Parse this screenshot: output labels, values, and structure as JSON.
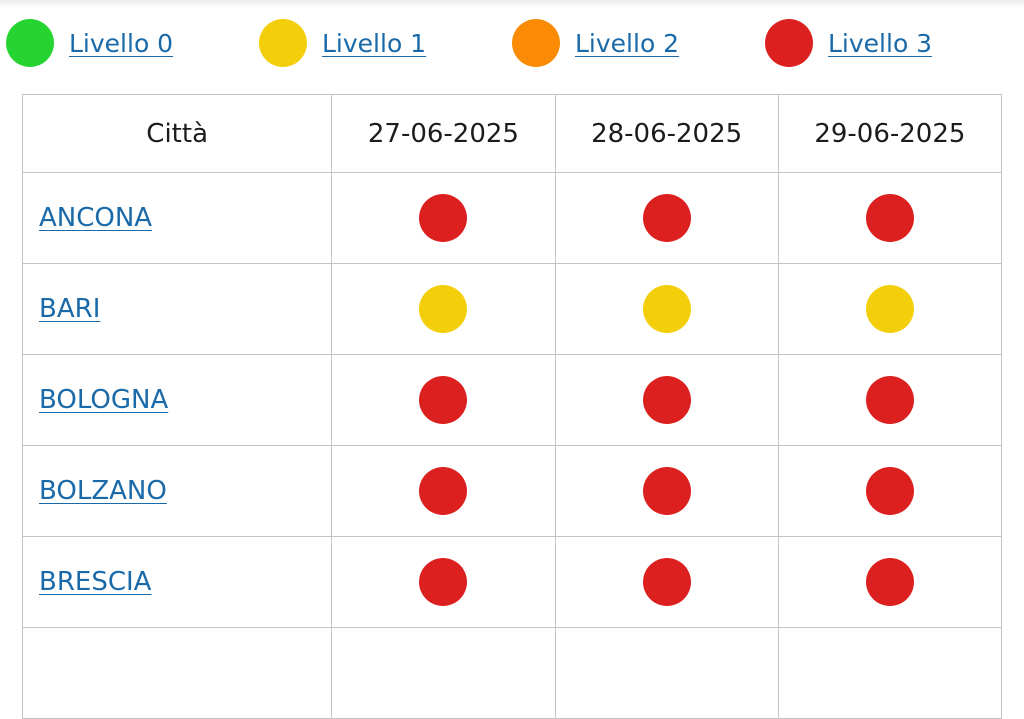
{
  "colors": {
    "level_0": "#25d430",
    "level_1": "#f2cf0a",
    "level_2": "#fb8b05",
    "level_3": "#dc1f1f"
  },
  "legend": [
    {
      "label": "Livello 0",
      "level": 0
    },
    {
      "label": "Livello 1",
      "level": 1
    },
    {
      "label": "Livello 2",
      "level": 2
    },
    {
      "label": "Livello 3",
      "level": 3
    }
  ],
  "table": {
    "city_header": "Città",
    "dates": [
      "27-06-2025",
      "28-06-2025",
      "29-06-2025"
    ],
    "rows": [
      {
        "city": "ANCONA",
        "levels": [
          3,
          3,
          3
        ]
      },
      {
        "city": "BARI",
        "levels": [
          1,
          1,
          1
        ]
      },
      {
        "city": "BOLOGNA",
        "levels": [
          3,
          3,
          3
        ]
      },
      {
        "city": "BOLZANO",
        "levels": [
          3,
          3,
          3
        ]
      },
      {
        "city": "BRESCIA",
        "levels": [
          3,
          3,
          3
        ]
      },
      {
        "city": "",
        "levels": [
          null,
          null,
          null
        ]
      }
    ]
  }
}
